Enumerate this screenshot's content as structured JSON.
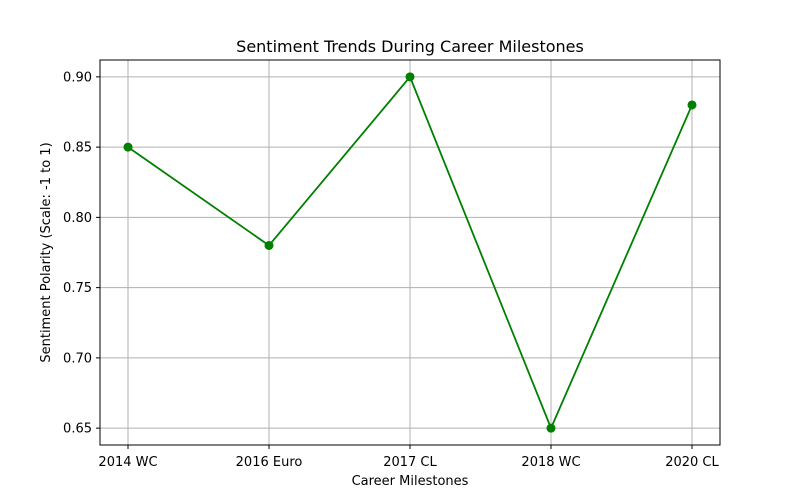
{
  "chart_data": {
    "type": "line",
    "title": "Sentiment Trends During Career Milestones",
    "xlabel": "Career Milestones",
    "ylabel": "Sentiment Polarity (Scale: -1 to 1)",
    "categories": [
      "2014 WC",
      "2016 Euro",
      "2017 CL",
      "2018 WC",
      "2020 CL"
    ],
    "series": [
      {
        "values": [
          0.85,
          0.78,
          0.9,
          0.65,
          0.88
        ],
        "color": "#008000",
        "marker": "circle"
      }
    ],
    "ylim": [
      0.638,
      0.912
    ],
    "yticks": [
      0.65,
      0.7,
      0.75,
      0.8,
      0.85,
      0.9
    ],
    "ytick_labels": [
      "0.65",
      "0.70",
      "0.75",
      "0.80",
      "0.85",
      "0.90"
    ],
    "grid": true,
    "grid_color": "#b0b0b0",
    "legend": "none"
  }
}
